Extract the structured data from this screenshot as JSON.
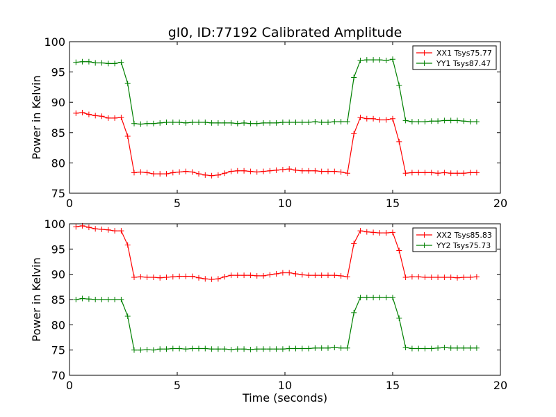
{
  "chart_data": [
    {
      "type": "line",
      "title": "gI0, ID:77192 Calibrated Amplitude",
      "xlabel": "",
      "ylabel": "Power in Kelvin",
      "xlim": [
        0,
        20
      ],
      "ylim": [
        75,
        100
      ],
      "xticks": [
        "0",
        "5",
        "10",
        "15",
        "20"
      ],
      "yticks": [
        "75",
        "80",
        "85",
        "90",
        "95",
        "100"
      ],
      "legend_position": "top-right",
      "x": [
        0.3,
        0.6,
        0.9,
        1.2,
        1.5,
        1.8,
        2.1,
        2.4,
        2.7,
        3.0,
        3.3,
        3.6,
        3.9,
        4.2,
        4.5,
        4.8,
        5.1,
        5.4,
        5.7,
        6.0,
        6.3,
        6.6,
        6.9,
        7.2,
        7.5,
        7.8,
        8.1,
        8.4,
        8.7,
        9.0,
        9.3,
        9.6,
        9.9,
        10.2,
        10.5,
        10.8,
        11.1,
        11.4,
        11.7,
        12.0,
        12.3,
        12.6,
        12.9,
        13.2,
        13.5,
        13.8,
        14.1,
        14.4,
        14.7,
        15.0,
        15.3,
        15.6,
        15.9,
        16.2,
        16.5,
        16.8,
        17.1,
        17.4,
        17.7,
        18.0,
        18.3,
        18.6,
        18.9
      ],
      "series": [
        {
          "name": "XX1 Tsys75.77",
          "color": "#ff0000",
          "values": [
            88.2,
            88.3,
            88.0,
            87.8,
            87.7,
            87.4,
            87.4,
            87.5,
            84.4,
            78.4,
            78.5,
            78.4,
            78.2,
            78.2,
            78.2,
            78.4,
            78.5,
            78.6,
            78.5,
            78.2,
            78.0,
            77.9,
            78.0,
            78.3,
            78.6,
            78.7,
            78.7,
            78.6,
            78.5,
            78.6,
            78.7,
            78.8,
            78.9,
            79.0,
            78.8,
            78.7,
            78.7,
            78.7,
            78.6,
            78.6,
            78.6,
            78.5,
            78.3,
            84.8,
            87.5,
            87.3,
            87.3,
            87.1,
            87.1,
            87.3,
            83.5,
            78.3,
            78.4,
            78.4,
            78.4,
            78.4,
            78.3,
            78.4,
            78.3,
            78.3,
            78.3,
            78.4,
            78.4
          ]
        },
        {
          "name": "YY1 Tsys87.47",
          "color": "#008000",
          "values": [
            96.6,
            96.7,
            96.7,
            96.5,
            96.5,
            96.4,
            96.4,
            96.6,
            93.1,
            86.5,
            86.4,
            86.5,
            86.5,
            86.6,
            86.7,
            86.7,
            86.7,
            86.6,
            86.7,
            86.7,
            86.7,
            86.6,
            86.6,
            86.6,
            86.6,
            86.5,
            86.6,
            86.5,
            86.5,
            86.6,
            86.6,
            86.6,
            86.7,
            86.7,
            86.7,
            86.7,
            86.7,
            86.8,
            86.7,
            86.7,
            86.8,
            86.8,
            86.8,
            94.1,
            96.9,
            97.0,
            97.0,
            97.0,
            96.9,
            97.1,
            92.8,
            87.0,
            86.8,
            86.8,
            86.8,
            86.9,
            86.9,
            87.0,
            87.0,
            87.0,
            86.9,
            86.8,
            86.8
          ]
        }
      ]
    },
    {
      "type": "line",
      "title": "",
      "xlabel": "Time (seconds)",
      "ylabel": "Power in Kelvin",
      "xlim": [
        0,
        20
      ],
      "ylim": [
        70,
        100
      ],
      "xticks": [
        "0",
        "5",
        "10",
        "15",
        "20"
      ],
      "yticks": [
        "70",
        "75",
        "80",
        "85",
        "90",
        "95",
        "100"
      ],
      "legend_position": "top-right",
      "x": [
        0.3,
        0.6,
        0.9,
        1.2,
        1.5,
        1.8,
        2.1,
        2.4,
        2.7,
        3.0,
        3.3,
        3.6,
        3.9,
        4.2,
        4.5,
        4.8,
        5.1,
        5.4,
        5.7,
        6.0,
        6.3,
        6.6,
        6.9,
        7.2,
        7.5,
        7.8,
        8.1,
        8.4,
        8.7,
        9.0,
        9.3,
        9.6,
        9.9,
        10.2,
        10.5,
        10.8,
        11.1,
        11.4,
        11.7,
        12.0,
        12.3,
        12.6,
        12.9,
        13.2,
        13.5,
        13.8,
        14.1,
        14.4,
        14.7,
        15.0,
        15.3,
        15.6,
        15.9,
        16.2,
        16.5,
        16.8,
        17.1,
        17.4,
        17.7,
        18.0,
        18.3,
        18.6,
        18.9
      ],
      "series": [
        {
          "name": "XX2 Tsys85.83",
          "color": "#ff0000",
          "values": [
            99.4,
            99.6,
            99.3,
            99.0,
            98.9,
            98.8,
            98.6,
            98.6,
            95.8,
            89.4,
            89.5,
            89.4,
            89.4,
            89.3,
            89.4,
            89.5,
            89.6,
            89.6,
            89.6,
            89.3,
            89.1,
            89.0,
            89.1,
            89.5,
            89.8,
            89.8,
            89.8,
            89.8,
            89.7,
            89.7,
            89.9,
            90.1,
            90.3,
            90.3,
            90.1,
            89.9,
            89.8,
            89.8,
            89.8,
            89.8,
            89.8,
            89.7,
            89.5,
            96.1,
            98.6,
            98.4,
            98.3,
            98.2,
            98.2,
            98.3,
            94.7,
            89.4,
            89.5,
            89.5,
            89.4,
            89.4,
            89.4,
            89.4,
            89.4,
            89.3,
            89.4,
            89.4,
            89.5
          ]
        },
        {
          "name": "YY2 Tsys75.73",
          "color": "#008000",
          "values": [
            85.0,
            85.2,
            85.1,
            85.0,
            85.0,
            85.0,
            85.0,
            85.0,
            81.7,
            75.0,
            75.0,
            75.1,
            75.0,
            75.2,
            75.2,
            75.3,
            75.3,
            75.2,
            75.3,
            75.3,
            75.3,
            75.2,
            75.2,
            75.2,
            75.1,
            75.2,
            75.2,
            75.1,
            75.2,
            75.2,
            75.2,
            75.2,
            75.2,
            75.3,
            75.3,
            75.3,
            75.3,
            75.4,
            75.4,
            75.4,
            75.5,
            75.4,
            75.4,
            82.4,
            85.4,
            85.4,
            85.4,
            85.4,
            85.4,
            85.4,
            81.3,
            75.5,
            75.3,
            75.3,
            75.3,
            75.3,
            75.4,
            75.5,
            75.4,
            75.4,
            75.4,
            75.4,
            75.4
          ]
        }
      ]
    }
  ]
}
